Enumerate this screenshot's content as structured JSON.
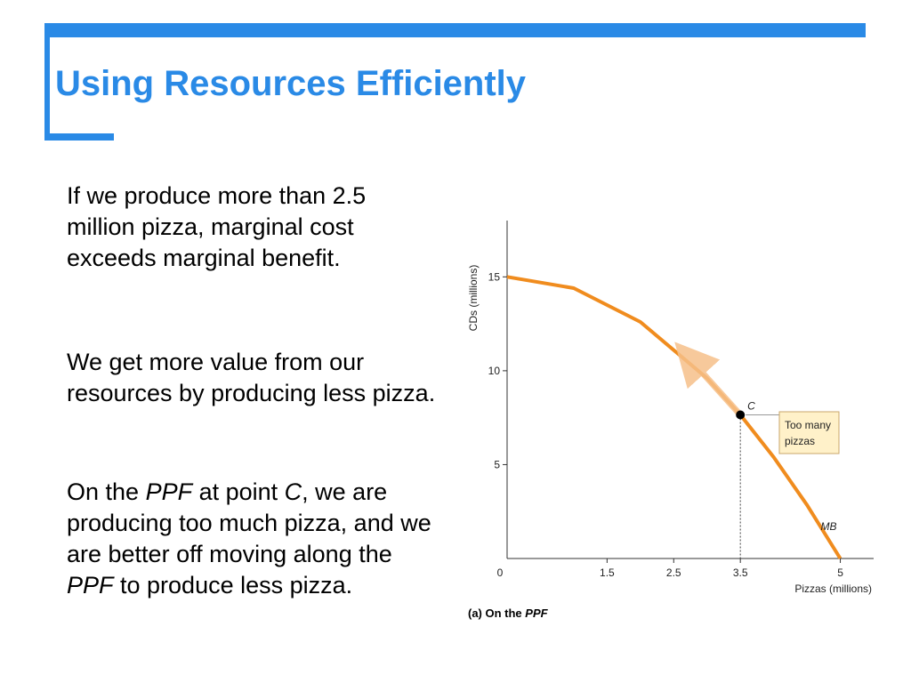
{
  "slide": {
    "title": "Using Resources Efficiently",
    "accent_color": "#2a8ae6"
  },
  "paragraphs": {
    "p1": "If we produce more than 2.5 million pizza, marginal cost exceeds marginal benefit.",
    "p2": "We get more value from our resources by producing less pizza.",
    "p3": {
      "t1": "On the ",
      "t2": "PPF",
      "t3": " at point ",
      "t4": "C",
      "t5": ", we are producing too much pizza, and we are better off moving along the ",
      "t6": "PPF",
      "t7": " to produce less pizza."
    }
  },
  "chart_data": {
    "type": "line",
    "caption_prefix": "(a) On the ",
    "caption_emph": "PPF",
    "xlabel": "Pizzas (millions)",
    "ylabel": "CDs (millions)",
    "x_ticks": [
      "0",
      "1.5",
      "2.5",
      "3.5",
      "5"
    ],
    "x_tick_values": [
      0,
      1.5,
      2.5,
      3.5,
      5
    ],
    "y_ticks": [
      "5",
      "10",
      "15"
    ],
    "y_tick_values": [
      5,
      10,
      15
    ],
    "xlim": [
      0,
      5.5
    ],
    "ylim": [
      0,
      18
    ],
    "series": [
      {
        "name": "MB",
        "x": [
          0,
          1,
          2,
          3,
          3.5,
          4,
          4.5,
          5
        ],
        "y": [
          15,
          14.4,
          12.6,
          9.6,
          7.65,
          5.4,
          2.85,
          0
        ],
        "color": "#f08c1e"
      }
    ],
    "point": {
      "label": "C",
      "x": 3.5,
      "y": 7.65
    },
    "movement_arrow": {
      "from_x": 3.5,
      "from_y": 7.65,
      "to_x": 2.7,
      "to_y": 10.8,
      "color": "#f6c08a"
    },
    "annotation": {
      "line1": "Too many",
      "line2": "pizzas",
      "fill": "#fff1c9",
      "border": "#c8a66b"
    }
  }
}
